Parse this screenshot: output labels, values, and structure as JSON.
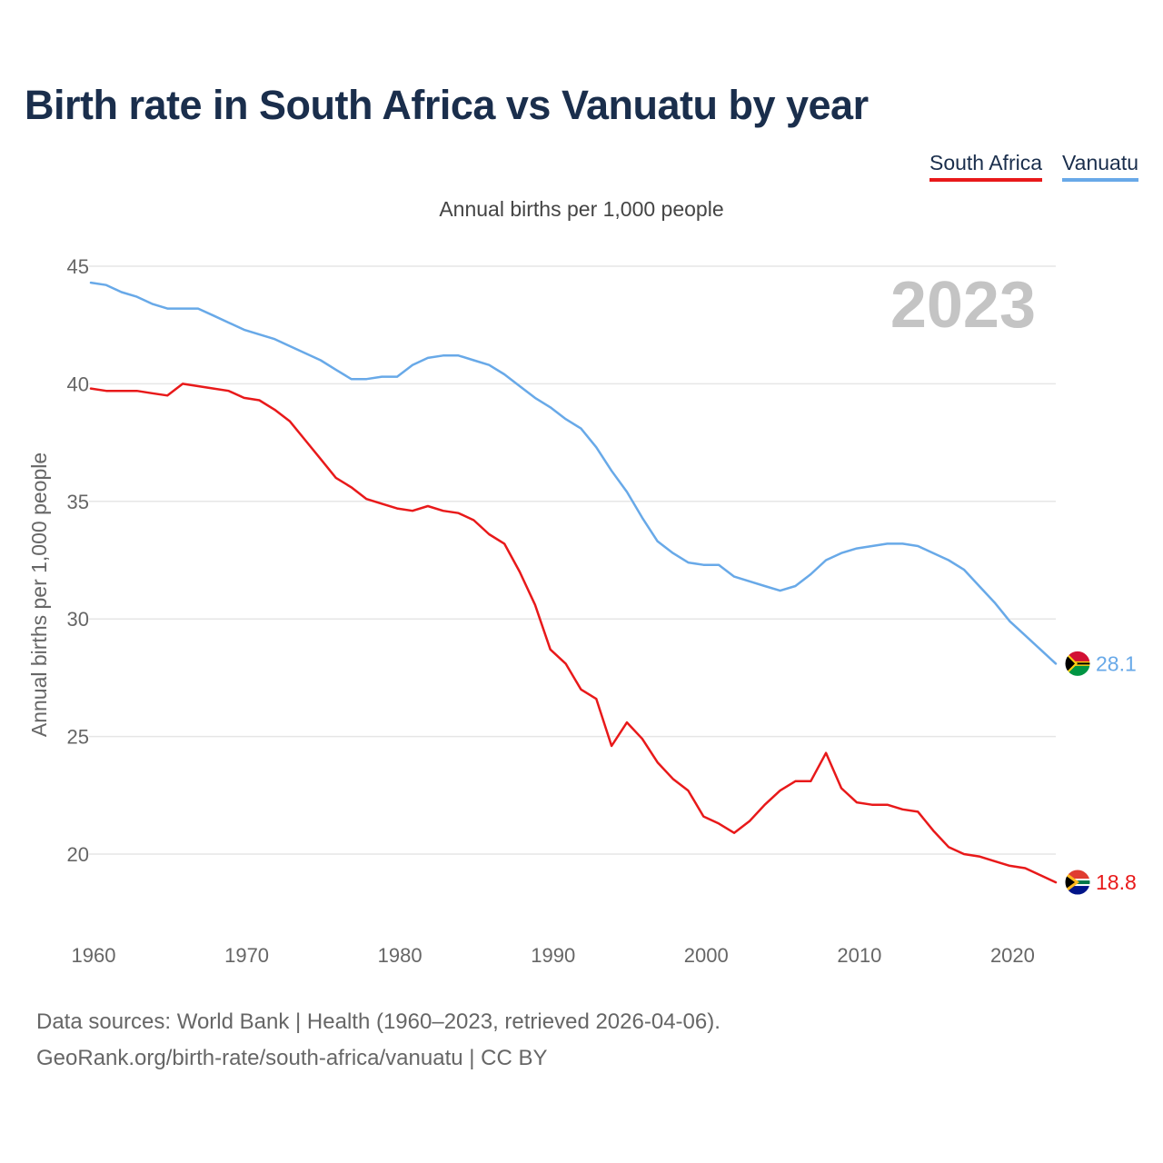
{
  "title": "Birth rate in South Africa vs Vanuatu by year",
  "subtitle": "Annual births per 1,000 people",
  "legend": [
    {
      "label": "South Africa",
      "color": "#e8191a"
    },
    {
      "label": "Vanuatu",
      "color": "#68a9e8"
    }
  ],
  "year_watermark": "2023",
  "source_lines": [
    "Data sources: World Bank | Health (1960–2023, retrieved 2026-04-06).",
    "GeoRank.org/birth-rate/south-africa/vanuatu | CC BY"
  ],
  "chart_data": {
    "type": "line",
    "title": "Birth rate in South Africa vs Vanuatu by year",
    "xlabel": "",
    "ylabel": "Annual births per 1,000 people",
    "xlim": [
      1960,
      2023
    ],
    "ylim": [
      17,
      45
    ],
    "x_ticks": [
      1960,
      1970,
      1980,
      1990,
      2000,
      2010,
      2020
    ],
    "y_ticks": [
      20,
      25,
      30,
      35,
      40,
      45
    ],
    "grid": true,
    "legend_position": "top-right",
    "x": [
      1960,
      1961,
      1962,
      1963,
      1964,
      1965,
      1966,
      1967,
      1968,
      1969,
      1970,
      1971,
      1972,
      1973,
      1974,
      1975,
      1976,
      1977,
      1978,
      1979,
      1980,
      1981,
      1982,
      1983,
      1984,
      1985,
      1986,
      1987,
      1988,
      1989,
      1990,
      1991,
      1992,
      1993,
      1994,
      1995,
      1996,
      1997,
      1998,
      1999,
      2000,
      2001,
      2002,
      2003,
      2004,
      2005,
      2006,
      2007,
      2008,
      2009,
      2010,
      2011,
      2012,
      2013,
      2014,
      2015,
      2016,
      2017,
      2018,
      2019,
      2020,
      2021,
      2022,
      2023
    ],
    "series": [
      {
        "name": "South Africa",
        "color": "#e8191a",
        "end_label": "18.8",
        "values": [
          39.8,
          39.7,
          39.7,
          39.7,
          39.6,
          39.5,
          40.0,
          39.9,
          39.8,
          39.7,
          39.4,
          39.3,
          38.9,
          38.4,
          37.6,
          36.8,
          36.0,
          35.6,
          35.1,
          34.9,
          34.7,
          34.6,
          34.8,
          34.6,
          34.5,
          34.2,
          33.6,
          33.2,
          32.0,
          30.6,
          28.7,
          28.1,
          27.0,
          26.6,
          24.6,
          25.6,
          24.9,
          23.9,
          23.2,
          22.7,
          21.6,
          21.3,
          20.9,
          21.4,
          22.1,
          22.7,
          23.1,
          23.1,
          24.3,
          22.8,
          22.2,
          22.1,
          22.1,
          21.9,
          21.8,
          21.0,
          20.3,
          20.0,
          19.9,
          19.7,
          19.5,
          19.4,
          19.1,
          18.8
        ]
      },
      {
        "name": "Vanuatu",
        "color": "#68a9e8",
        "end_label": "28.1",
        "values": [
          44.3,
          44.2,
          43.9,
          43.7,
          43.4,
          43.2,
          43.2,
          43.2,
          42.9,
          42.6,
          42.3,
          42.1,
          41.9,
          41.6,
          41.3,
          41.0,
          40.6,
          40.2,
          40.2,
          40.3,
          40.3,
          40.8,
          41.1,
          41.2,
          41.2,
          41.0,
          40.8,
          40.4,
          39.9,
          39.4,
          39.0,
          38.5,
          38.1,
          37.3,
          36.3,
          35.4,
          34.3,
          33.3,
          32.8,
          32.4,
          32.3,
          32.3,
          31.8,
          31.6,
          31.4,
          31.2,
          31.4,
          31.9,
          32.5,
          32.8,
          33.0,
          33.1,
          33.2,
          33.2,
          33.1,
          32.8,
          32.5,
          32.1,
          31.4,
          30.7,
          29.9,
          29.3,
          28.7,
          28.1
        ]
      }
    ]
  }
}
